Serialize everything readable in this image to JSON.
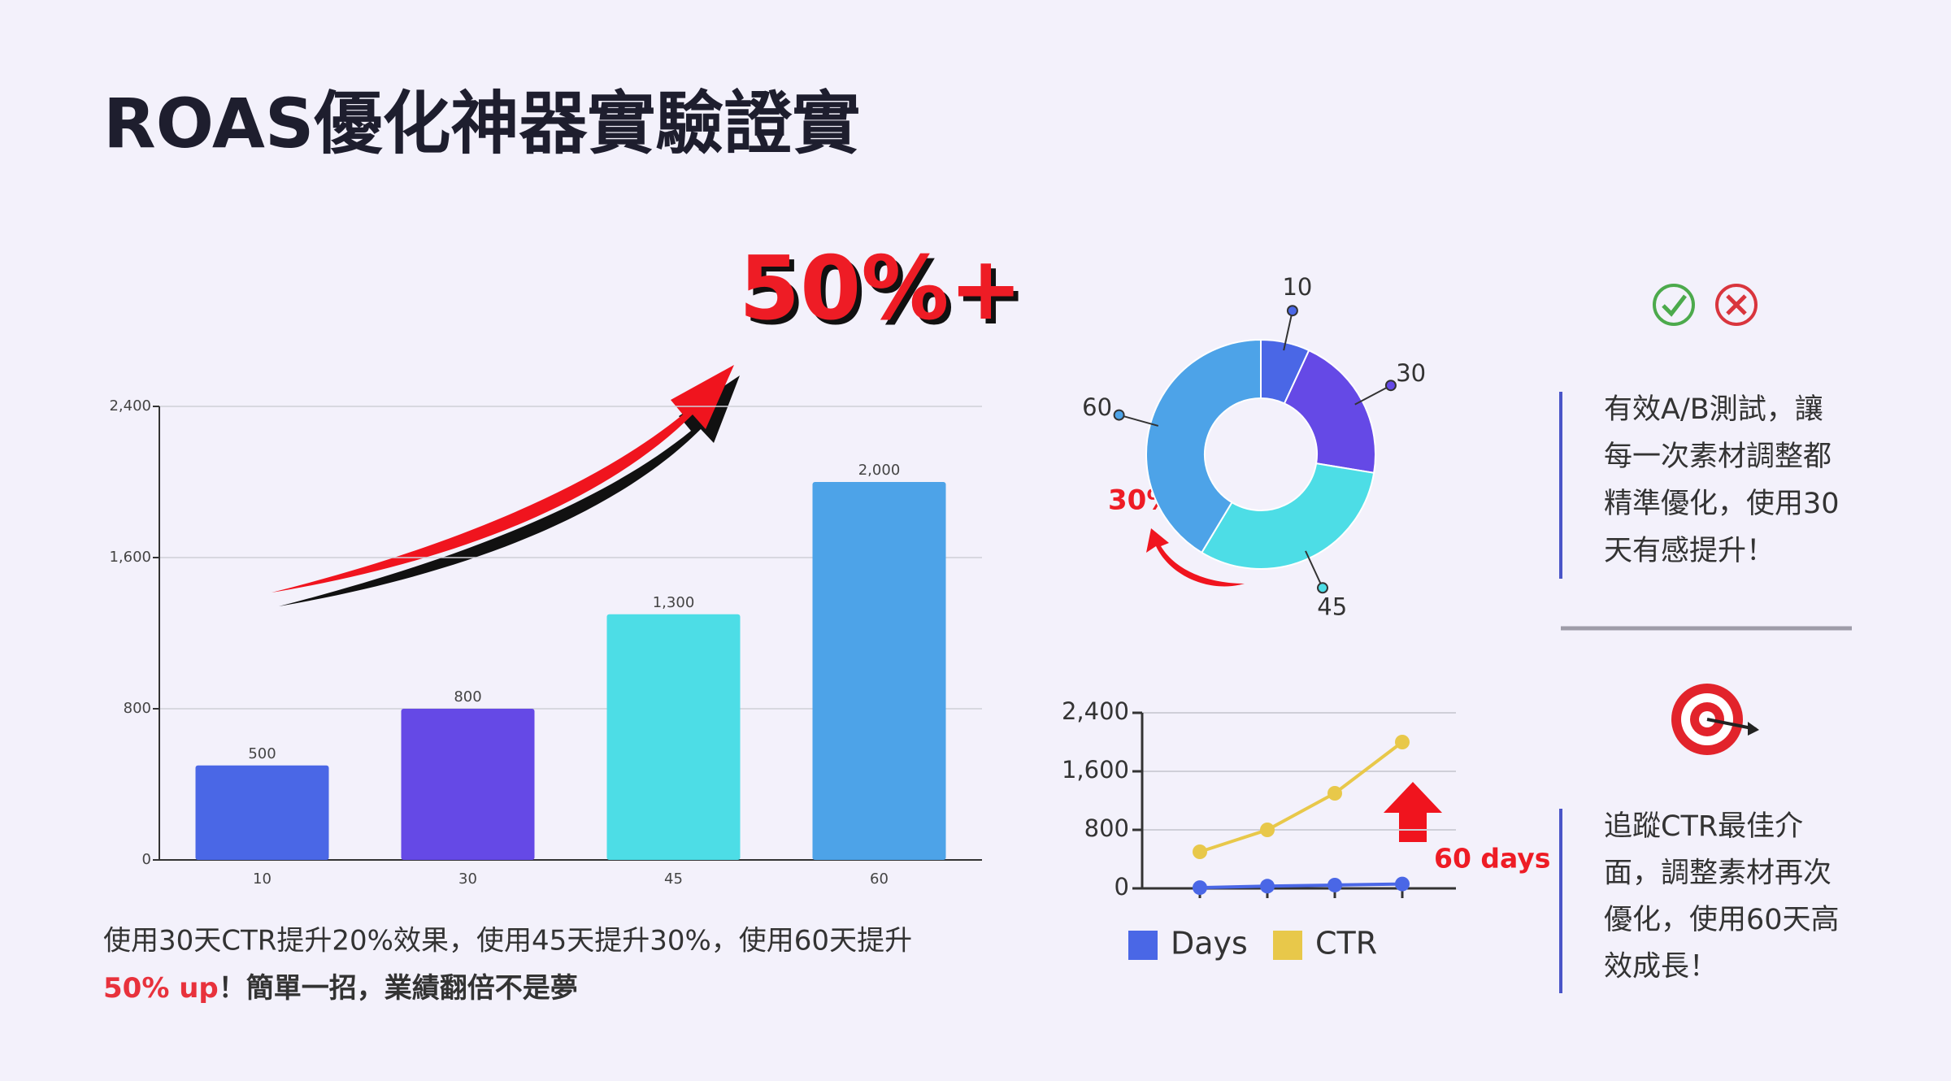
{
  "title": "ROAS優化神器實驗證實",
  "headline": "50%+",
  "caption": {
    "line1": "使用30天CTR提升20%效果，使用45天提升30%，使用60天提升",
    "highlight": "50% up",
    "rest": "！簡單一招，業績翻倍不是夢"
  },
  "notes": [
    {
      "lines": [
        "有效A/B測試，讓",
        "每一次素材調整都",
        "精準優化，使用30",
        "天有感提升！"
      ]
    },
    {
      "lines": [
        "追蹤CTR最佳介",
        "面，調整素材再次",
        "優化，使用60天高",
        "效成長！"
      ]
    }
  ],
  "chart_data": [
    {
      "type": "bar",
      "categories": [
        "10",
        "30",
        "45",
        "60"
      ],
      "values": [
        500,
        800,
        1300,
        2000
      ],
      "value_labels": [
        "500",
        "800",
        "1,300",
        "2,000"
      ],
      "colors": [
        "#4a67e6",
        "#6549e6",
        "#4ddde6",
        "#4da3e8"
      ],
      "ylim": [
        0,
        2400
      ],
      "yticks": [
        0,
        800,
        {
          "value": 1600,
          "label": "1,600"
        },
        {
          "value": 2400,
          "label": "2,400"
        }
      ],
      "grid": true
    },
    {
      "type": "donut",
      "values": [
        10,
        30,
        45,
        60
      ],
      "colors": [
        "#4a67e6",
        "#6549e6",
        "#4ddde6",
        "#4da3e8"
      ],
      "annotation": "30%"
    },
    {
      "type": "line",
      "categories": [
        null,
        null,
        null,
        null
      ],
      "series": [
        {
          "name": "Days",
          "color": "#4a67e6",
          "values": [
            10,
            30,
            45,
            60
          ]
        },
        {
          "name": "CTR",
          "color": "#e8c84a",
          "values": [
            500,
            800,
            1300,
            2000
          ]
        }
      ],
      "ylim": [
        0,
        2400
      ],
      "yticks": [
        0,
        800,
        {
          "value": 1600,
          "label": "1,600"
        },
        {
          "value": 2400,
          "label": "2,400"
        }
      ],
      "grid": true,
      "legend": "bottom",
      "annotation": "60 days"
    }
  ]
}
